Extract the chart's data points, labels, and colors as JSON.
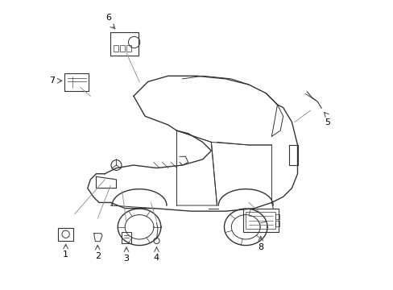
{
  "title": "",
  "background_color": "#ffffff",
  "line_color": "#333333",
  "label_color": "#000000",
  "arrow_color": "#555555",
  "figsize": [
    4.89,
    3.6
  ],
  "dpi": 100,
  "leader_lines": [
    [
      0.18,
      0.38,
      0.075,
      0.26
    ],
    [
      0.2,
      0.36,
      0.155,
      0.245
    ],
    [
      0.24,
      0.34,
      0.255,
      0.23
    ],
    [
      0.34,
      0.3,
      0.36,
      0.235
    ],
    [
      0.84,
      0.58,
      0.895,
      0.62
    ],
    [
      0.3,
      0.72,
      0.255,
      0.82
    ],
    [
      0.13,
      0.67,
      0.095,
      0.7
    ],
    [
      0.68,
      0.3,
      0.72,
      0.265
    ]
  ]
}
